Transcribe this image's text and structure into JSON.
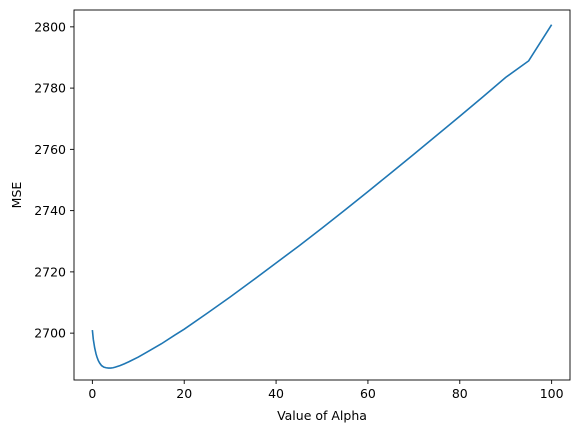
{
  "chart_data": {
    "type": "line",
    "title": "",
    "xlabel": "Value of Alpha",
    "ylabel": "MSE",
    "xlim": [
      -4.0,
      104.0
    ],
    "ylim": [
      2684.7,
      2805.5
    ],
    "x_ticks": [
      0,
      20,
      40,
      60,
      80,
      100
    ],
    "y_ticks": [
      2700,
      2720,
      2740,
      2760,
      2780,
      2800
    ],
    "grid": false,
    "legend": "none",
    "colors": {
      "line": "#1f77b4",
      "axes": "#000000"
    },
    "series": [
      {
        "x": [
          0,
          0.2,
          0.5,
          0.8,
          1.0,
          1.3,
          1.6,
          2.0,
          2.5,
          3.0,
          3.5,
          4.0,
          4.5,
          5.0,
          6.0,
          7.0,
          8.0,
          10,
          12,
          15,
          18,
          20,
          25,
          30,
          35,
          40,
          45,
          50,
          55,
          60,
          65,
          70,
          75,
          80,
          85,
          90,
          95,
          100
        ],
        "y": [
          2701.0,
          2698.0,
          2695.2,
          2693.2,
          2692.2,
          2691.0,
          2690.2,
          2689.4,
          2688.9,
          2688.7,
          2688.6,
          2688.6,
          2688.7,
          2688.9,
          2689.4,
          2690.0,
          2690.7,
          2692.2,
          2693.9,
          2696.5,
          2699.4,
          2701.3,
          2706.5,
          2711.8,
          2717.3,
          2722.9,
          2728.5,
          2734.3,
          2740.2,
          2746.2,
          2752.3,
          2758.4,
          2764.6,
          2770.8,
          2777.1,
          2783.5,
          2788.9,
          2800.7
        ]
      }
    ]
  }
}
